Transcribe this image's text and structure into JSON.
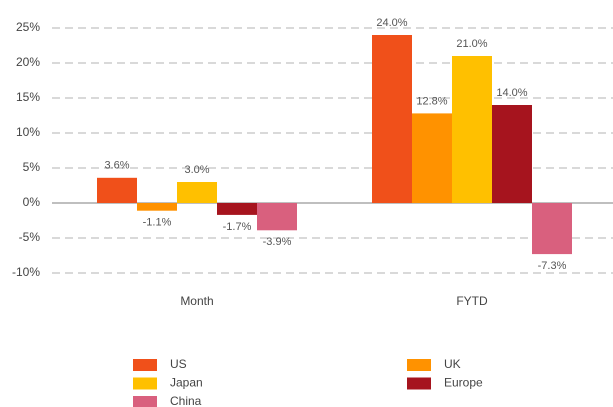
{
  "chart_data": {
    "type": "bar",
    "categories": [
      "Month",
      "FYTD"
    ],
    "series": [
      {
        "name": "US",
        "color": "#f0501a",
        "values": [
          3.6,
          24.0
        ],
        "value_labels": [
          "3.6%",
          "24.0%"
        ]
      },
      {
        "name": "UK",
        "color": "#ff9200",
        "values": [
          -1.1,
          12.8
        ],
        "value_labels": [
          "-1.1%",
          "12.8%"
        ]
      },
      {
        "name": "Japan",
        "color": "#ffc000",
        "values": [
          3.0,
          21.0
        ],
        "value_labels": [
          "3.0%",
          "21.0%"
        ]
      },
      {
        "name": "Europe",
        "color": "#a6141e",
        "values": [
          -1.7,
          14.0
        ],
        "value_labels": [
          "-1.7%",
          "14.0%"
        ]
      },
      {
        "name": "China",
        "color": "#d9607e",
        "values": [
          -3.9,
          -7.3
        ],
        "value_labels": [
          "-3.9%",
          "-7.3%"
        ]
      }
    ],
    "ylim": [
      -10,
      25
    ],
    "yticks": [
      {
        "value": -10,
        "label": "-10%"
      },
      {
        "value": -5,
        "label": "-5%"
      },
      {
        "value": 0,
        "label": "0%"
      },
      {
        "value": 5,
        "label": "5%"
      },
      {
        "value": 10,
        "label": "10%"
      },
      {
        "value": 15,
        "label": "15%"
      },
      {
        "value": 20,
        "label": "20%"
      },
      {
        "value": 25,
        "label": "25%"
      }
    ],
    "grid": true,
    "legend": "bottom"
  }
}
